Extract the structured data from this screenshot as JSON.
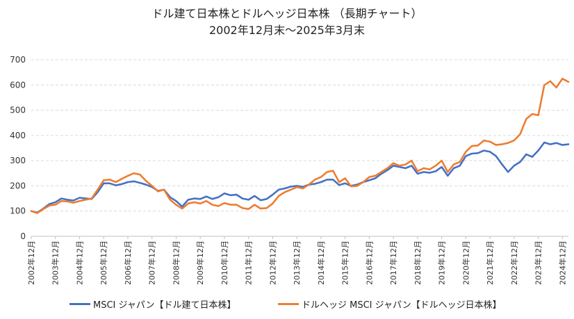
{
  "chart_data": {
    "type": "line",
    "title": "ドル建て日本株とドルヘッジ日本株 （長期チャート）",
    "subtitle": "2002年12月末〜2025年3月末",
    "xlabel": "",
    "ylabel": "",
    "ylim": [
      0,
      700
    ],
    "yticks": [
      "0",
      "100",
      "200",
      "300",
      "400",
      "500",
      "600",
      "700"
    ],
    "x_start": "2002年12月",
    "x_end": "2025年3月",
    "x_ticks": [
      "2002年12月",
      "2003年12月",
      "2004年12月",
      "2005年12月",
      "2006年12月",
      "2007年12月",
      "2008年12月",
      "2009年12月",
      "2010年12月",
      "2011年12月",
      "2012年12月",
      "2013年12月",
      "2014年12月",
      "2015年12月",
      "2016年12月",
      "2017年12月",
      "2018年12月",
      "2019年12月",
      "2020年12月",
      "2021年12月",
      "2022年12月",
      "2023年12月",
      "2024年12月"
    ],
    "grid": true,
    "legend_position": "bottom",
    "series": [
      {
        "name": "MSCI ジャパン【ドル建て日本株】",
        "color": "#4472C4",
        "points": [
          [
            "2002年12月",
            100
          ],
          [
            "2003年3月",
            94
          ],
          [
            "2003年6月",
            110
          ],
          [
            "2003年9月",
            128
          ],
          [
            "2003年12月",
            135
          ],
          [
            "2004年3月",
            150
          ],
          [
            "2004年6月",
            145
          ],
          [
            "2004年9月",
            142
          ],
          [
            "2004年12月",
            153
          ],
          [
            "2005年3月",
            150
          ],
          [
            "2005年6月",
            148
          ],
          [
            "2005年9月",
            175
          ],
          [
            "2005年12月",
            210
          ],
          [
            "2006年3月",
            210
          ],
          [
            "2006年6月",
            202
          ],
          [
            "2006年9月",
            207
          ],
          [
            "2006年12月",
            215
          ],
          [
            "2007年3月",
            218
          ],
          [
            "2007年6月",
            212
          ],
          [
            "2007年9月",
            205
          ],
          [
            "2007年12月",
            195
          ],
          [
            "2008年3月",
            180
          ],
          [
            "2008年6月",
            185
          ],
          [
            "2008年9月",
            155
          ],
          [
            "2008年12月",
            140
          ],
          [
            "2009年3月",
            118
          ],
          [
            "2009年6月",
            145
          ],
          [
            "2009年9月",
            150
          ],
          [
            "2009年12月",
            148
          ],
          [
            "2010年3月",
            158
          ],
          [
            "2010年6月",
            148
          ],
          [
            "2010年9月",
            155
          ],
          [
            "2010年12月",
            170
          ],
          [
            "2011年3月",
            163
          ],
          [
            "2011年6月",
            165
          ],
          [
            "2011年9月",
            150
          ],
          [
            "2011年12月",
            145
          ],
          [
            "2012年3月",
            160
          ],
          [
            "2012年6月",
            143
          ],
          [
            "2012年9月",
            148
          ],
          [
            "2012年12月",
            165
          ],
          [
            "2013年3月",
            185
          ],
          [
            "2013年6月",
            190
          ],
          [
            "2013年9月",
            197
          ],
          [
            "2013年12月",
            200
          ],
          [
            "2014年3月",
            196
          ],
          [
            "2014年6月",
            205
          ],
          [
            "2014年9月",
            208
          ],
          [
            "2014年12月",
            215
          ],
          [
            "2015年3月",
            225
          ],
          [
            "2015年6月",
            225
          ],
          [
            "2015年9月",
            203
          ],
          [
            "2015年12月",
            210
          ],
          [
            "2016年3月",
            200
          ],
          [
            "2016年6月",
            205
          ],
          [
            "2016年9月",
            215
          ],
          [
            "2016年12月",
            222
          ],
          [
            "2017年3月",
            230
          ],
          [
            "2017年6月",
            248
          ],
          [
            "2017年9月",
            262
          ],
          [
            "2017年12月",
            280
          ],
          [
            "2018年3月",
            275
          ],
          [
            "2018年6月",
            270
          ],
          [
            "2018年9月",
            280
          ],
          [
            "2018年12月",
            248
          ],
          [
            "2019年3月",
            255
          ],
          [
            "2019年6月",
            252
          ],
          [
            "2019年9月",
            258
          ],
          [
            "2019年12月",
            275
          ],
          [
            "2020年3月",
            240
          ],
          [
            "2020年6月",
            270
          ],
          [
            "2020年9月",
            280
          ],
          [
            "2020年12月",
            318
          ],
          [
            "2021年3月",
            328
          ],
          [
            "2021年6月",
            330
          ],
          [
            "2021年9月",
            340
          ],
          [
            "2021年12月",
            335
          ],
          [
            "2022年3月",
            318
          ],
          [
            "2022年6月",
            285
          ],
          [
            "2022年9月",
            255
          ],
          [
            "2022年12月",
            280
          ],
          [
            "2023年3月",
            295
          ],
          [
            "2023年6月",
            325
          ],
          [
            "2023年9月",
            315
          ],
          [
            "2023年12月",
            340
          ],
          [
            "2024年3月",
            372
          ],
          [
            "2024年6月",
            365
          ],
          [
            "2024年9月",
            370
          ],
          [
            "2024年12月",
            362
          ],
          [
            "2025年3月",
            365
          ]
        ]
      },
      {
        "name": "ドルヘッジ MSCI ジャパン【ドルヘッジ日本株】",
        "color": "#ED7D31",
        "points": [
          [
            "2002年12月",
            100
          ],
          [
            "2003年3月",
            92
          ],
          [
            "2003年6月",
            108
          ],
          [
            "2003年9月",
            122
          ],
          [
            "2003年12月",
            125
          ],
          [
            "2004年3月",
            140
          ],
          [
            "2004年6月",
            138
          ],
          [
            "2004年9月",
            133
          ],
          [
            "2004年12月",
            140
          ],
          [
            "2005年3月",
            145
          ],
          [
            "2005年6月",
            150
          ],
          [
            "2005年9月",
            185
          ],
          [
            "2005年12月",
            222
          ],
          [
            "2006年3月",
            225
          ],
          [
            "2006年6月",
            215
          ],
          [
            "2006年9月",
            228
          ],
          [
            "2006年12月",
            240
          ],
          [
            "2007年3月",
            250
          ],
          [
            "2007年6月",
            245
          ],
          [
            "2007年9月",
            220
          ],
          [
            "2007年12月",
            200
          ],
          [
            "2008年3月",
            178
          ],
          [
            "2008年6月",
            185
          ],
          [
            "2008年9月",
            145
          ],
          [
            "2008年12月",
            125
          ],
          [
            "2009年3月",
            110
          ],
          [
            "2009年6月",
            130
          ],
          [
            "2009年9月",
            135
          ],
          [
            "2009年12月",
            130
          ],
          [
            "2010年3月",
            140
          ],
          [
            "2010年6月",
            125
          ],
          [
            "2010年9月",
            120
          ],
          [
            "2010年12月",
            132
          ],
          [
            "2011年3月",
            125
          ],
          [
            "2011年6月",
            125
          ],
          [
            "2011年9月",
            112
          ],
          [
            "2011年12月",
            108
          ],
          [
            "2012年3月",
            125
          ],
          [
            "2012年6月",
            110
          ],
          [
            "2012年9月",
            112
          ],
          [
            "2012年12月",
            130
          ],
          [
            "2013年3月",
            160
          ],
          [
            "2013年6月",
            175
          ],
          [
            "2013年9月",
            185
          ],
          [
            "2013年12月",
            195
          ],
          [
            "2014年3月",
            190
          ],
          [
            "2014年6月",
            205
          ],
          [
            "2014年9月",
            225
          ],
          [
            "2014年12月",
            235
          ],
          [
            "2015年3月",
            255
          ],
          [
            "2015年6月",
            260
          ],
          [
            "2015年9月",
            215
          ],
          [
            "2015年12月",
            230
          ],
          [
            "2016年3月",
            198
          ],
          [
            "2016年6月",
            200
          ],
          [
            "2016年9月",
            215
          ],
          [
            "2016年12月",
            235
          ],
          [
            "2017年3月",
            240
          ],
          [
            "2017年6月",
            255
          ],
          [
            "2017年9月",
            270
          ],
          [
            "2017年12月",
            290
          ],
          [
            "2018年3月",
            280
          ],
          [
            "2018年6月",
            285
          ],
          [
            "2018年9月",
            300
          ],
          [
            "2018年12月",
            258
          ],
          [
            "2019年3月",
            270
          ],
          [
            "2019年6月",
            265
          ],
          [
            "2019年9月",
            280
          ],
          [
            "2019年12月",
            300
          ],
          [
            "2020年3月",
            255
          ],
          [
            "2020年6月",
            285
          ],
          [
            "2020年9月",
            295
          ],
          [
            "2020年12月",
            335
          ],
          [
            "2021年3月",
            358
          ],
          [
            "2021年6月",
            360
          ],
          [
            "2021年9月",
            380
          ],
          [
            "2021年12月",
            375
          ],
          [
            "2022年3月",
            362
          ],
          [
            "2022年6月",
            365
          ],
          [
            "2022年9月",
            370
          ],
          [
            "2022年12月",
            380
          ],
          [
            "2023年3月",
            405
          ],
          [
            "2023年6月",
            465
          ],
          [
            "2023年9月",
            485
          ],
          [
            "2023年12月",
            480
          ],
          [
            "2024年3月",
            600
          ],
          [
            "2024年6月",
            615
          ],
          [
            "2024年9月",
            590
          ],
          [
            "2024年12月",
            625
          ],
          [
            "2025年3月",
            612
          ]
        ]
      }
    ]
  }
}
